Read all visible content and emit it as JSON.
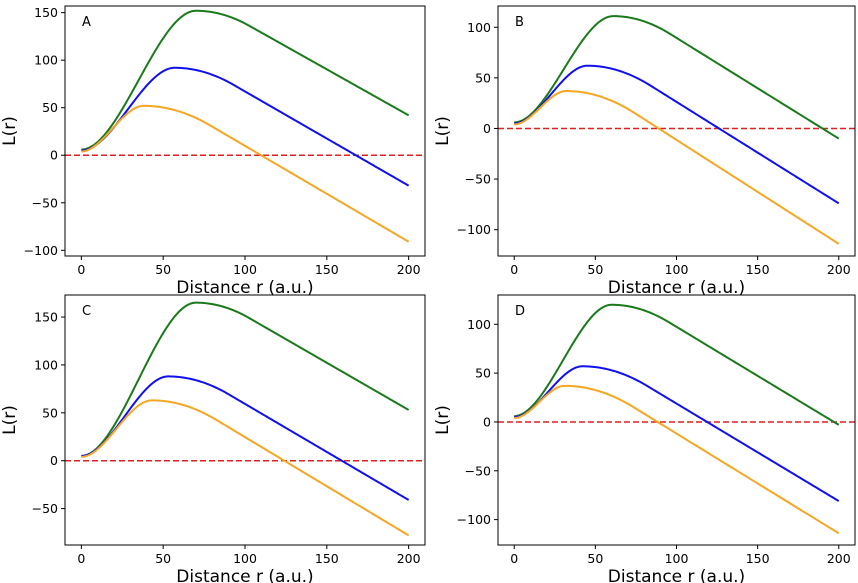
{
  "figure": {
    "colors": {
      "zero_line": "#dd2020",
      "axes": "#000000"
    }
  },
  "chart_data": [
    {
      "panel_label": "A",
      "type": "line",
      "xlabel": "Distance r (a.u.)",
      "ylabel": "L(r)",
      "xlim": [
        -10,
        210
      ],
      "ylim": [
        -106,
        157
      ],
      "xticks": [
        0,
        50,
        100,
        150,
        200
      ],
      "yticks": [
        -100,
        -50,
        0,
        50,
        100,
        150
      ],
      "reference_line": {
        "y": 0,
        "style": "dashed",
        "color": "#dd2020"
      },
      "series": [
        {
          "name": "green",
          "color": "#1a7a1a",
          "start": 6,
          "peak_x": 70,
          "peak_y": 152,
          "end": 42
        },
        {
          "name": "blue",
          "color": "#1010ee",
          "start": 5,
          "peak_x": 57,
          "peak_y": 92,
          "end": -32
        },
        {
          "name": "orange",
          "color": "#f5a623",
          "start": 4,
          "peak_x": 38,
          "peak_y": 52,
          "end": -91
        }
      ]
    },
    {
      "panel_label": "B",
      "type": "line",
      "xlabel": "Distance r (a.u.)",
      "ylabel": "L(r)",
      "xlim": [
        -10,
        210
      ],
      "ylim": [
        -126,
        121
      ],
      "xticks": [
        0,
        50,
        100,
        150,
        200
      ],
      "yticks": [
        -100,
        -50,
        0,
        50,
        100
      ],
      "reference_line": {
        "y": 0,
        "style": "dashed",
        "color": "#dd2020"
      },
      "series": [
        {
          "name": "green",
          "color": "#1a7a1a",
          "start": 6,
          "peak_x": 61,
          "peak_y": 111,
          "end": -10
        },
        {
          "name": "blue",
          "color": "#1010ee",
          "start": 5,
          "peak_x": 45,
          "peak_y": 62,
          "end": -74
        },
        {
          "name": "orange",
          "color": "#f5a623",
          "start": 4,
          "peak_x": 32,
          "peak_y": 37,
          "end": -114
        }
      ]
    },
    {
      "panel_label": "C",
      "type": "line",
      "xlabel": "Distance r (a.u.)",
      "ylabel": "L(r)",
      "xlim": [
        -10,
        210
      ],
      "ylim": [
        -88,
        173
      ],
      "xticks": [
        0,
        50,
        100,
        150,
        200
      ],
      "yticks": [
        -50,
        0,
        50,
        100,
        150
      ],
      "reference_line": {
        "y": 0,
        "style": "dashed",
        "color": "#dd2020"
      },
      "series": [
        {
          "name": "green",
          "color": "#1a7a1a",
          "start": 5,
          "peak_x": 70,
          "peak_y": 165,
          "end": 53
        },
        {
          "name": "blue",
          "color": "#1010ee",
          "start": 5,
          "peak_x": 53,
          "peak_y": 88,
          "end": -41
        },
        {
          "name": "orange",
          "color": "#f5a623",
          "start": 4,
          "peak_x": 43,
          "peak_y": 63,
          "end": -78
        }
      ]
    },
    {
      "panel_label": "D",
      "type": "line",
      "xlabel": "Distance r (a.u.)",
      "ylabel": "L(r)",
      "xlim": [
        -10,
        210
      ],
      "ylim": [
        -126,
        130
      ],
      "xticks": [
        0,
        50,
        100,
        150,
        200
      ],
      "yticks": [
        -100,
        -50,
        0,
        50,
        100
      ],
      "reference_line": {
        "y": 0,
        "style": "dashed",
        "color": "#dd2020"
      },
      "series": [
        {
          "name": "green",
          "color": "#1a7a1a",
          "start": 6,
          "peak_x": 60,
          "peak_y": 120,
          "end": -3
        },
        {
          "name": "blue",
          "color": "#1010ee",
          "start": 5,
          "peak_x": 42,
          "peak_y": 57,
          "end": -81
        },
        {
          "name": "orange",
          "color": "#f5a623",
          "start": 4,
          "peak_x": 31,
          "peak_y": 37,
          "end": -114
        }
      ]
    }
  ]
}
